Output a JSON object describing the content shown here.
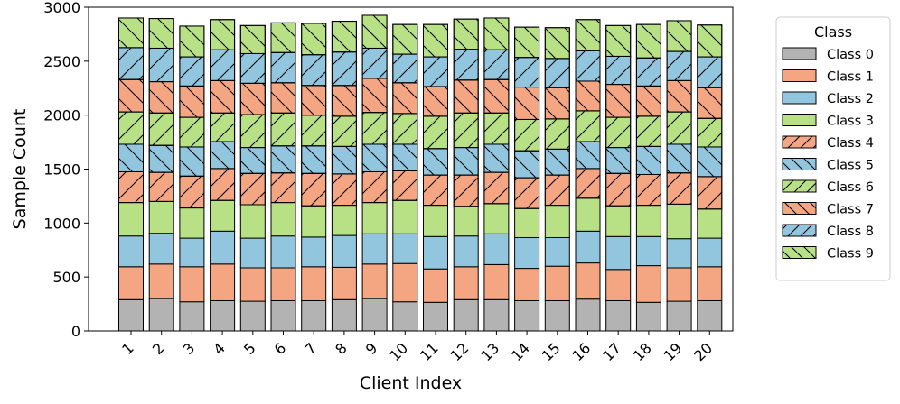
{
  "chart_data": {
    "type": "bar",
    "stacked": true,
    "xlabel": "Client Index",
    "ylabel": "Sample Count",
    "ylim": [
      0,
      3000
    ],
    "yticks": [
      0,
      500,
      1000,
      1500,
      2000,
      2500,
      3000
    ],
    "categories": [
      "1",
      "2",
      "3",
      "4",
      "5",
      "6",
      "7",
      "8",
      "9",
      "10",
      "11",
      "12",
      "13",
      "14",
      "15",
      "16",
      "17",
      "18",
      "19",
      "20"
    ],
    "legend": {
      "title": "Class",
      "placement": "outside-right"
    },
    "grid": false,
    "series": [
      {
        "name": "Class 0",
        "color": "#b3b3b3",
        "hatch": "none",
        "values": [
          290,
          300,
          270,
          280,
          275,
          280,
          280,
          290,
          300,
          270,
          265,
          290,
          290,
          280,
          280,
          295,
          280,
          265,
          275,
          280
        ]
      },
      {
        "name": "Class 1",
        "color": "#f4a582",
        "hatch": "none",
        "values": [
          305,
          320,
          325,
          340,
          310,
          305,
          315,
          300,
          320,
          355,
          310,
          305,
          325,
          300,
          320,
          335,
          290,
          340,
          310,
          315
        ]
      },
      {
        "name": "Class 2",
        "color": "#92c5de",
        "hatch": "none",
        "values": [
          285,
          285,
          265,
          305,
          275,
          295,
          275,
          295,
          280,
          275,
          300,
          285,
          285,
          285,
          265,
          295,
          305,
          270,
          270,
          265
        ]
      },
      {
        "name": "Class 3",
        "color": "#b8e186",
        "hatch": "none",
        "values": [
          310,
          295,
          280,
          285,
          310,
          310,
          290,
          280,
          290,
          310,
          290,
          275,
          280,
          270,
          300,
          305,
          285,
          290,
          320,
          270
        ]
      },
      {
        "name": "Class 4",
        "color": "#f4a582",
        "hatch": "/",
        "values": [
          285,
          270,
          295,
          295,
          290,
          275,
          300,
          290,
          285,
          275,
          280,
          290,
          290,
          285,
          280,
          275,
          300,
          285,
          290,
          300
        ]
      },
      {
        "name": "Class 5",
        "color": "#92c5de",
        "hatch": "\\",
        "values": [
          255,
          250,
          270,
          250,
          240,
          250,
          255,
          255,
          255,
          245,
          245,
          255,
          260,
          250,
          240,
          250,
          240,
          260,
          265,
          275
        ]
      },
      {
        "name": "Class 6",
        "color": "#b8e186",
        "hatch": "/",
        "values": [
          300,
          300,
          275,
          265,
          305,
          305,
          285,
          280,
          295,
          285,
          300,
          320,
          290,
          290,
          280,
          285,
          280,
          280,
          300,
          265
        ]
      },
      {
        "name": "Class 7",
        "color": "#f4a582",
        "hatch": "\\",
        "values": [
          300,
          290,
          290,
          300,
          290,
          280,
          275,
          285,
          315,
          285,
          275,
          305,
          310,
          300,
          290,
          275,
          305,
          280,
          290,
          285
        ]
      },
      {
        "name": "Class 8",
        "color": "#92c5de",
        "hatch": "/",
        "values": [
          295,
          310,
          270,
          285,
          275,
          280,
          285,
          310,
          280,
          265,
          275,
          285,
          275,
          275,
          270,
          280,
          260,
          260,
          270,
          285
        ]
      },
      {
        "name": "Class 9",
        "color": "#b8e186",
        "hatch": "\\",
        "values": [
          275,
          275,
          285,
          280,
          260,
          275,
          290,
          285,
          305,
          275,
          300,
          280,
          295,
          280,
          285,
          290,
          285,
          310,
          285,
          295
        ]
      }
    ]
  }
}
